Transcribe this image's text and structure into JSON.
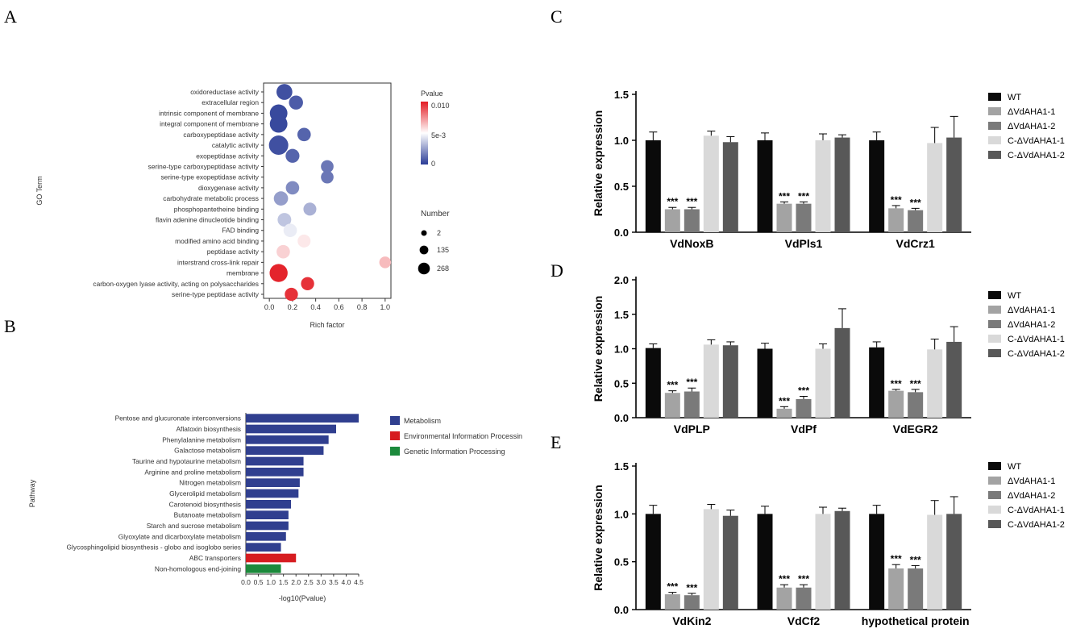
{
  "panel_labels": {
    "a": "A",
    "b": "B",
    "c": "C",
    "d": "D",
    "e": "E"
  },
  "colors": {
    "metabolism": "#303f8f",
    "environmental": "#d61c20",
    "genetic": "#1c8a3c",
    "wt": "#0a0a0a",
    "ko1": "#a3a3a3",
    "ko2": "#7a7a7a",
    "c1": "#d9d9d9",
    "c2": "#585858"
  },
  "group_legend": [
    "WT",
    "ΔVdAHA1-1",
    "ΔVdAHA1-2",
    "C-ΔVdAHA1-1",
    "C-ΔVdAHA1-2"
  ],
  "chart_data": [
    {
      "id": "A",
      "type": "scatter",
      "title": "",
      "xlabel": "Rich factor",
      "ylabel": "GO Term",
      "xlim": [
        -0.05,
        1.05
      ],
      "xticks": [
        "0.0",
        "0.2",
        "0.4",
        "0.6",
        "0.8",
        "1.0"
      ],
      "xtick_values": [
        0,
        0.2,
        0.4,
        0.6,
        0.8,
        1.0
      ],
      "color_legend": {
        "title": "Pvalue",
        "ticks": [
          "0.010",
          "5e-3",
          "0"
        ]
      },
      "size_legend": {
        "title": "Number",
        "values": [
          2,
          135,
          268
        ]
      },
      "points": [
        {
          "term": "oxidoreductase activity",
          "rich": 0.13,
          "number": 110,
          "p": 0.0005
        },
        {
          "term": "extracellular region",
          "rich": 0.23,
          "number": 55,
          "p": 0.0008
        },
        {
          "term": "intrinsic component of membrane",
          "rich": 0.08,
          "number": 180,
          "p": 0.0003
        },
        {
          "term": "integral component of membrane",
          "rich": 0.08,
          "number": 180,
          "p": 0.0003
        },
        {
          "term": "carboxypeptidase activity",
          "rich": 0.3,
          "number": 40,
          "p": 0.001
        },
        {
          "term": "catalytic activity",
          "rich": 0.08,
          "number": 268,
          "p": 0.0005
        },
        {
          "term": "exopeptidase activity",
          "rich": 0.2,
          "number": 50,
          "p": 0.001
        },
        {
          "term": "serine-type carboxypeptidase activity",
          "rich": 0.5,
          "number": 25,
          "p": 0.0015
        },
        {
          "term": "serine-type exopeptidase activity",
          "rich": 0.5,
          "number": 25,
          "p": 0.0015
        },
        {
          "term": "dioxygenase activity",
          "rich": 0.2,
          "number": 40,
          "p": 0.002
        },
        {
          "term": "carbohydrate metabolic process",
          "rich": 0.1,
          "number": 60,
          "p": 0.0025
        },
        {
          "term": "phosphopantetheine binding",
          "rich": 0.35,
          "number": 30,
          "p": 0.003
        },
        {
          "term": "flavin adenine dinucleotide binding",
          "rich": 0.13,
          "number": 45,
          "p": 0.0035
        },
        {
          "term": "FAD binding",
          "rich": 0.18,
          "number": 40,
          "p": 0.0045
        },
        {
          "term": "modified amino acid binding",
          "rich": 0.3,
          "number": 30,
          "p": 0.0055
        },
        {
          "term": "peptidase activity",
          "rich": 0.12,
          "number": 40,
          "p": 0.006
        },
        {
          "term": "interstrand cross-link repair",
          "rich": 1.0,
          "number": 12,
          "p": 0.0065
        },
        {
          "term": "membrane",
          "rich": 0.08,
          "number": 200,
          "p": 0.0098
        },
        {
          "term": "carbon-oxygen lyase activity, acting on polysaccharides",
          "rich": 0.33,
          "number": 35,
          "p": 0.0095
        },
        {
          "term": "serine-type peptidase activity",
          "rich": 0.19,
          "number": 35,
          "p": 0.0095
        }
      ]
    },
    {
      "id": "B",
      "type": "bar",
      "orientation": "horizontal",
      "xlabel": "-log10(Pvalue)",
      "ylabel": "Pathway",
      "xlim": [
        0,
        4.5
      ],
      "xticks": [
        "0.0",
        "0.5",
        "1.0",
        "1.5",
        "2.0",
        "2.5",
        "3.0",
        "3.5",
        "4.0",
        "4.5"
      ],
      "legend": [
        "Metabolism",
        "Environmental Information Processin",
        "Genetic Information Processing"
      ],
      "categories": [
        "Pentose and glucuronate interconversions",
        "Aflatoxin biosynthesis",
        "Phenylalanine metabolism",
        "Galactose metabolism",
        "Taurine and hypotaurine metabolism",
        "Arginine and proline metabolism",
        "Nitrogen metabolism",
        "Glycerolipid metabolism",
        "Carotenoid biosynthesis",
        "Butanoate metabolism",
        "Starch and sucrose metabolism",
        "Glyoxylate and dicarboxylate metabolism",
        "Glycosphingolipid biosynthesis - globo and isoglobo series",
        "ABC transporters",
        "Non-homologous end-joining"
      ],
      "values": [
        4.5,
        3.6,
        3.3,
        3.1,
        2.3,
        2.3,
        2.15,
        2.1,
        1.8,
        1.7,
        1.7,
        1.6,
        1.4,
        2.0,
        1.4
      ],
      "classes": [
        "metabolism",
        "metabolism",
        "metabolism",
        "metabolism",
        "metabolism",
        "metabolism",
        "metabolism",
        "metabolism",
        "metabolism",
        "metabolism",
        "metabolism",
        "metabolism",
        "metabolism",
        "environmental",
        "genetic"
      ]
    },
    {
      "id": "C",
      "type": "bar",
      "ylabel": "Relative expression",
      "ylim": [
        0,
        1.5
      ],
      "yticks": [
        "0.0",
        "0.5",
        "1.0",
        "1.5"
      ],
      "categories": [
        "VdNoxB",
        "VdPls1",
        "VdCrz1"
      ],
      "series": [
        {
          "name": "WT",
          "values": [
            1.0,
            1.0,
            1.0
          ],
          "errors": [
            0.09,
            0.08,
            0.09
          ],
          "sig": [
            "",
            "",
            ""
          ]
        },
        {
          "name": "ΔVdAHA1-1",
          "values": [
            0.25,
            0.31,
            0.26
          ],
          "errors": [
            0.02,
            0.02,
            0.03
          ],
          "sig": [
            "***",
            "***",
            "***"
          ]
        },
        {
          "name": "ΔVdAHA1-2",
          "values": [
            0.25,
            0.31,
            0.24
          ],
          "errors": [
            0.02,
            0.02,
            0.02
          ],
          "sig": [
            "***",
            "***",
            "***"
          ]
        },
        {
          "name": "C-ΔVdAHA1-1",
          "values": [
            1.05,
            1.0,
            0.97
          ],
          "errors": [
            0.05,
            0.07,
            0.17
          ],
          "sig": [
            "",
            "",
            ""
          ]
        },
        {
          "name": "C-ΔVdAHA1-2",
          "values": [
            0.98,
            1.03,
            1.03
          ],
          "errors": [
            0.06,
            0.03,
            0.23
          ],
          "sig": [
            "",
            "",
            ""
          ]
        }
      ]
    },
    {
      "id": "D",
      "type": "bar",
      "ylabel": "Relative expression",
      "ylim": [
        0,
        2.0
      ],
      "yticks": [
        "0.0",
        "0.5",
        "1.0",
        "1.5",
        "2.0"
      ],
      "categories": [
        "VdPLP",
        "VdPf",
        "VdEGR2"
      ],
      "series": [
        {
          "name": "WT",
          "values": [
            1.01,
            1.0,
            1.02
          ],
          "errors": [
            0.06,
            0.08,
            0.08
          ],
          "sig": [
            "",
            "",
            ""
          ]
        },
        {
          "name": "ΔVdAHA1-1",
          "values": [
            0.36,
            0.13,
            0.39
          ],
          "errors": [
            0.03,
            0.03,
            0.02
          ],
          "sig": [
            "***",
            "***",
            "***"
          ]
        },
        {
          "name": "ΔVdAHA1-2",
          "values": [
            0.38,
            0.27,
            0.37
          ],
          "errors": [
            0.05,
            0.04,
            0.04
          ],
          "sig": [
            "***",
            "***",
            "***"
          ]
        },
        {
          "name": "C-ΔVdAHA1-1",
          "values": [
            1.06,
            1.0,
            0.99
          ],
          "errors": [
            0.07,
            0.07,
            0.15
          ],
          "sig": [
            "",
            "",
            ""
          ]
        },
        {
          "name": "C-ΔVdAHA1-2",
          "values": [
            1.05,
            1.3,
            1.1
          ],
          "errors": [
            0.05,
            0.28,
            0.22
          ],
          "sig": [
            "",
            "",
            ""
          ]
        }
      ]
    },
    {
      "id": "E",
      "type": "bar",
      "ylabel": "Relative expression",
      "ylim": [
        0,
        1.5
      ],
      "yticks": [
        "0.0",
        "0.5",
        "1.0",
        "1.5"
      ],
      "categories": [
        "VdKin2",
        "VdCf2",
        "hypothetical protein"
      ],
      "series": [
        {
          "name": "WT",
          "values": [
            1.0,
            1.0,
            1.0
          ],
          "errors": [
            0.09,
            0.08,
            0.09
          ],
          "sig": [
            "",
            "",
            ""
          ]
        },
        {
          "name": "ΔVdAHA1-1",
          "values": [
            0.16,
            0.23,
            0.43
          ],
          "errors": [
            0.02,
            0.03,
            0.04
          ],
          "sig": [
            "***",
            "***",
            "***"
          ]
        },
        {
          "name": "ΔVdAHA1-2",
          "values": [
            0.15,
            0.23,
            0.43
          ],
          "errors": [
            0.02,
            0.03,
            0.03
          ],
          "sig": [
            "***",
            "***",
            "***"
          ]
        },
        {
          "name": "C-ΔVdAHA1-1",
          "values": [
            1.05,
            1.0,
            0.99
          ],
          "errors": [
            0.05,
            0.07,
            0.15
          ],
          "sig": [
            "",
            "",
            ""
          ]
        },
        {
          "name": "C-ΔVdAHA1-2",
          "values": [
            0.98,
            1.03,
            1.0
          ],
          "errors": [
            0.06,
            0.03,
            0.18
          ],
          "sig": [
            "",
            "",
            ""
          ]
        }
      ]
    }
  ]
}
